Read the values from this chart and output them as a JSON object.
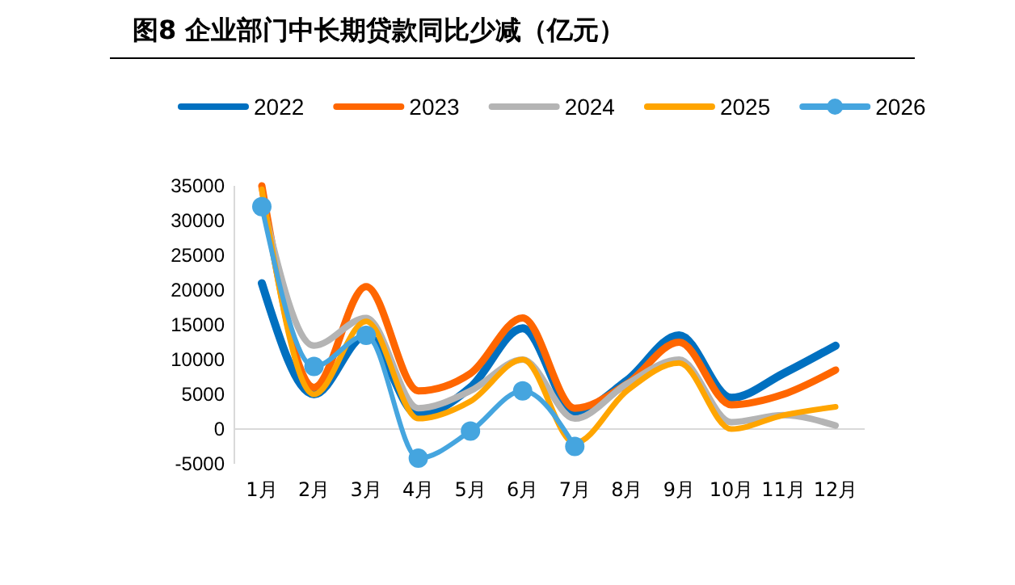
{
  "chart_data": {
    "type": "line",
    "title": "图8  企业部门中长期贷款同比少减（亿元）",
    "categories": [
      "1月",
      "2月",
      "3月",
      "4月",
      "5月",
      "6月",
      "7月",
      "8月",
      "9月",
      "10月",
      "11月",
      "12月"
    ],
    "series": [
      {
        "name": "2022",
        "color": "#0070c0",
        "marker": "none",
        "values": [
          21000,
          5000,
          13500,
          2000,
          6000,
          14500,
          2500,
          7000,
          13500,
          4500,
          8000,
          12000
        ]
      },
      {
        "name": "2023",
        "color": "#ff6600",
        "marker": "none",
        "values": [
          35000,
          6000,
          20500,
          5500,
          8000,
          16000,
          3000,
          6500,
          12500,
          3500,
          5000,
          8500
        ]
      },
      {
        "name": "2024",
        "color": "#b4b4b4",
        "marker": "none",
        "values": [
          33000,
          12000,
          16000,
          3000,
          5500,
          10000,
          1500,
          6500,
          10000,
          1000,
          2000,
          500
        ]
      },
      {
        "name": "2025",
        "color": "#ffa500",
        "marker": "none",
        "values": [
          34500,
          5000,
          15500,
          1500,
          4000,
          10000,
          -2000,
          5500,
          9500,
          0,
          2000,
          3200
        ]
      },
      {
        "name": "2026",
        "color": "#45a5df",
        "marker": "circle",
        "values": [
          32000,
          9000,
          13500,
          -4200,
          -300,
          5500,
          -2500,
          null,
          null,
          null,
          null,
          null
        ]
      }
    ],
    "ylim": [
      -5000,
      35000
    ],
    "yticks": [
      -5000,
      0,
      5000,
      10000,
      15000,
      20000,
      25000,
      30000,
      35000
    ],
    "grid": false,
    "legend": "top",
    "line_style": "solid"
  }
}
